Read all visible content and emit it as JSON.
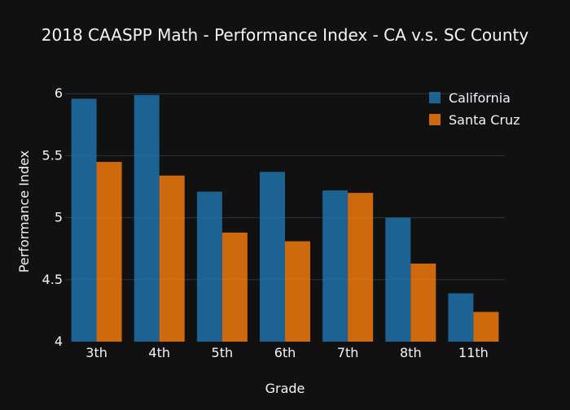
{
  "chart_data": {
    "type": "bar",
    "title": "2018 CAASPP Math - Performance Index - CA v.s. SC County",
    "xlabel": "Grade",
    "ylabel": "Performance Index",
    "categories": [
      "3th",
      "4th",
      "5th",
      "6th",
      "7th",
      "8th",
      "11th"
    ],
    "series": [
      {
        "name": "California",
        "color": "#1f77b4",
        "values": [
          5.96,
          5.99,
          5.21,
          5.37,
          5.22,
          5.0,
          4.39
        ]
      },
      {
        "name": "Santa Cruz",
        "color": "#ff7f0e",
        "values": [
          5.45,
          5.34,
          4.88,
          4.81,
          5.2,
          4.63,
          4.24
        ]
      }
    ],
    "ylim": [
      4,
      6.1
    ],
    "yticks": [
      4,
      4.5,
      5,
      5.5,
      6
    ],
    "ytick_labels": [
      "4",
      "4.5",
      "5",
      "5.5",
      "6"
    ],
    "grid": true,
    "legend_position": "top-right"
  },
  "style": {
    "background": "#111111",
    "text_color": "#f2f5fa",
    "grid_color": "#283442",
    "bar_opacity": 0.8
  }
}
